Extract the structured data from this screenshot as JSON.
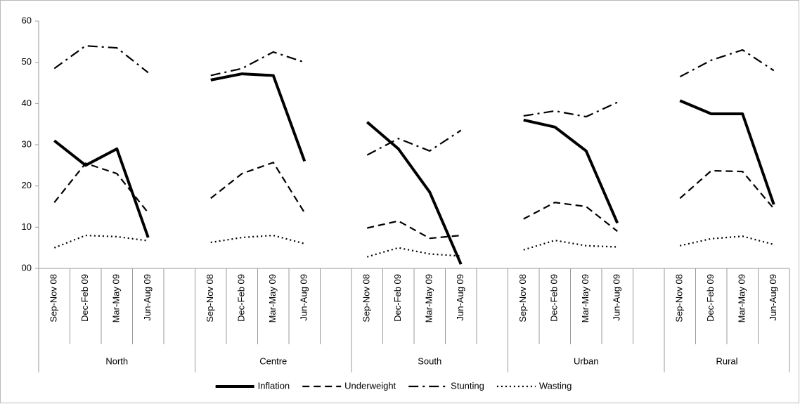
{
  "chart_data": {
    "type": "line",
    "categories": [
      "Sep-Nov 08",
      "Dec-Feb 09",
      "Mar-May 09",
      "Jun-Aug 09",
      null,
      "Sep-Nov 08",
      "Dec-Feb 09",
      "Mar-May 09",
      "Jun-Aug 09",
      null,
      "Sep-Nov 08",
      "Dec-Feb 09",
      "Mar-May 09",
      "Jun-Aug 09",
      null,
      "Sep-Nov 08",
      "Dec-Feb 09",
      "Mar-May 09",
      "Jun-Aug 09",
      null,
      "Sep-Nov 08",
      "Dec-Feb 09",
      "Mar-May 09",
      "Jun-Aug 09"
    ],
    "groups": [
      "North",
      "Centre",
      "South",
      "Urban",
      "Rural"
    ],
    "series": [
      {
        "name": "Inflation",
        "color": "#000000",
        "dash": "solid",
        "values": [
          31,
          25,
          29,
          7.5,
          null,
          45.7,
          47.2,
          46.8,
          26,
          null,
          35.5,
          29,
          18.5,
          1,
          null,
          36,
          34.3,
          28.5,
          11,
          null,
          40.7,
          37.5,
          37.5,
          15.5
        ]
      },
      {
        "name": "Underweight",
        "color": "#000000",
        "dash": "dashed",
        "values": [
          16,
          25.5,
          23,
          13.5,
          null,
          17,
          23,
          25.7,
          13.5,
          null,
          9.8,
          11.5,
          7.3,
          8,
          null,
          12,
          16,
          15,
          9,
          null,
          17,
          23.7,
          23.5,
          14.5
        ]
      },
      {
        "name": "Stunting",
        "color": "#000000",
        "dash": "dashdot",
        "values": [
          48.5,
          54,
          53.5,
          47.5,
          null,
          46.8,
          48.5,
          52.5,
          50,
          null,
          27.5,
          31.5,
          28.5,
          33.5,
          null,
          37,
          38.2,
          36.8,
          40.3,
          null,
          46.5,
          50.5,
          53,
          48
        ]
      },
      {
        "name": "Wasting",
        "color": "#000000",
        "dash": "dotted",
        "values": [
          5,
          8,
          7.7,
          6.7,
          null,
          6.3,
          7.5,
          8,
          6,
          null,
          2.8,
          5,
          3.5,
          3,
          null,
          4.5,
          6.8,
          5.5,
          5.2,
          null,
          5.5,
          7.2,
          7.8,
          5.8
        ]
      }
    ],
    "ylim": [
      0,
      60
    ],
    "yticks": [
      {
        "value": 0,
        "label": "00"
      },
      10,
      20,
      30,
      40,
      50,
      60
    ],
    "grid": false,
    "legend": "bottom"
  }
}
